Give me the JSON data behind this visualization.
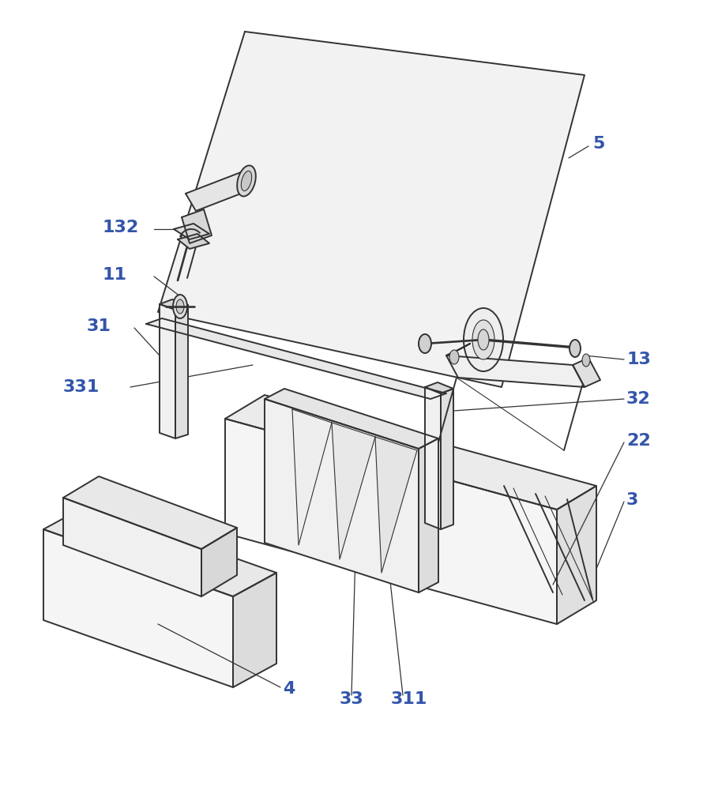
{
  "background_color": "#ffffff",
  "line_color": "#333333",
  "label_color": "#3355aa",
  "figsize": [
    8.9,
    10.0
  ],
  "dpi": 100,
  "lw_main": 1.4,
  "lw_thin": 0.8,
  "lw_detail": 0.6
}
